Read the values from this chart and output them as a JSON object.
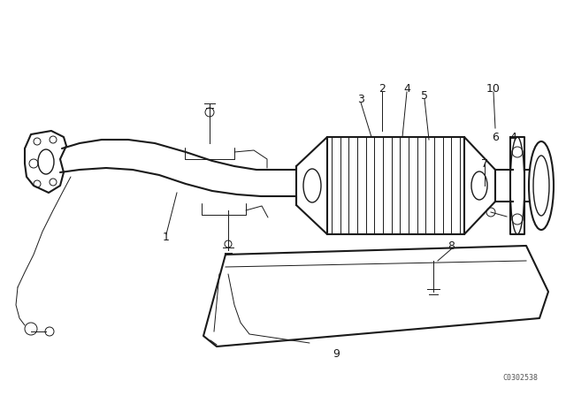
{
  "background_color": "#ffffff",
  "line_color": "#1a1a1a",
  "fig_width": 6.4,
  "fig_height": 4.48,
  "dpi": 100,
  "watermark": "C0302538"
}
